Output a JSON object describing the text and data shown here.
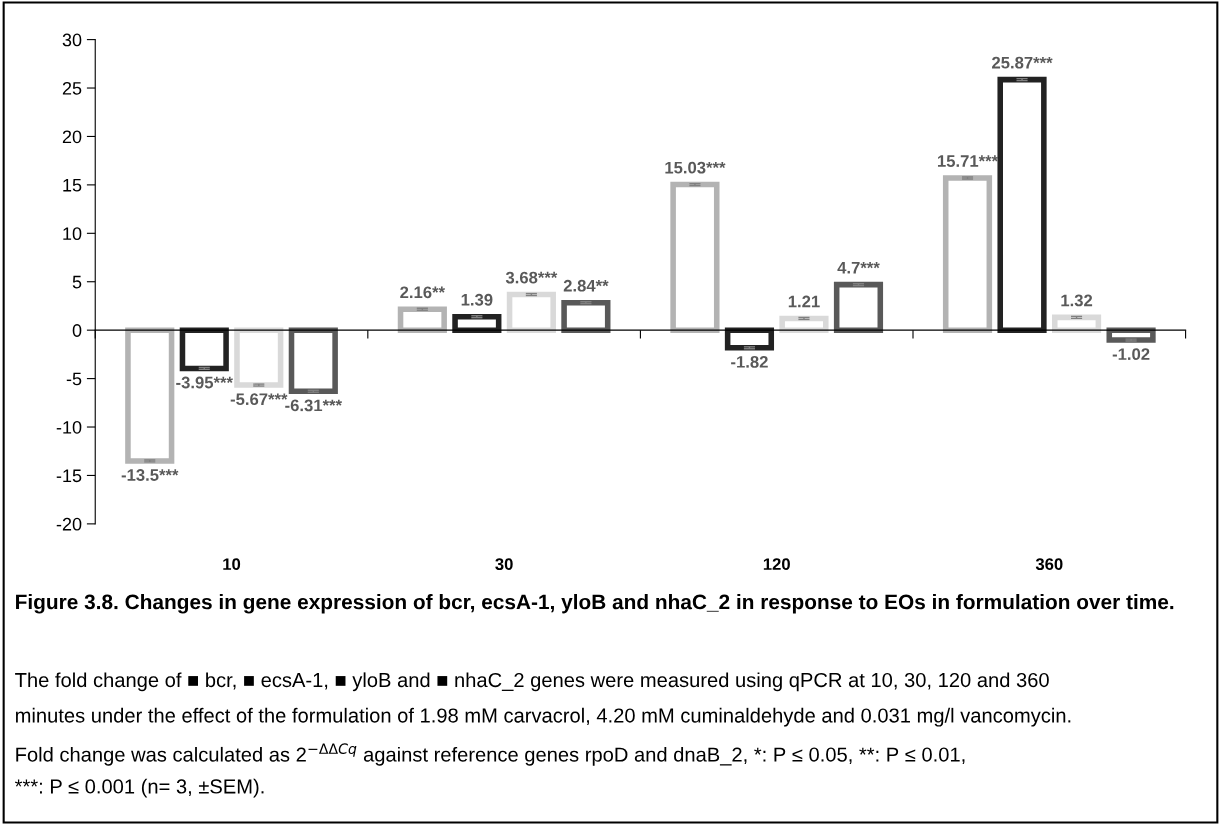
{
  "chart_data": {
    "type": "bar",
    "title": "Figure 3.8. Changes in gene expression of bcr, ecsA-1, yloB and nhaC_2 in response to EOs in formulation over time.",
    "categories": [
      "10",
      "30",
      "120",
      "360"
    ],
    "series": [
      {
        "color": "#b3b3b3",
        "values": [
          -13.5,
          2.16,
          15.03,
          15.71
        ],
        "errors": [
          0.1,
          0.1,
          0.1,
          0.1
        ],
        "value_labels": [
          "-13.5***",
          "2.16**",
          "15.03***",
          "15.71***"
        ]
      },
      {
        "color": "#222222",
        "values": [
          -3.95,
          1.39,
          -1.82,
          25.87
        ],
        "errors": [
          0.1,
          0.1,
          0.1,
          0.1
        ],
        "value_labels": [
          "-3.95***",
          "1.39",
          "-1.82",
          "25.87***"
        ]
      },
      {
        "color": "#d9d9d9",
        "values": [
          -5.67,
          3.68,
          1.21,
          1.32
        ],
        "errors": [
          0.1,
          0.1,
          0.1,
          0.1
        ],
        "value_labels": [
          "-5.67***",
          "3.68***",
          "1.21",
          "1.32"
        ]
      },
      {
        "color": "#595959",
        "values": [
          -6.31,
          2.84,
          4.7,
          -1.02
        ],
        "errors": [
          0.1,
          0.1,
          0.1,
          0.1
        ],
        "value_labels": [
          "-6.31***",
          "2.84**",
          "4.7***",
          "-1.02"
        ]
      }
    ],
    "ylim": [
      -20,
      30
    ],
    "yticks": [
      -20,
      -15,
      -10,
      -5,
      0,
      5,
      10,
      15,
      20,
      25,
      30
    ],
    "legend": false,
    "annotations": [
      "The fold change of ■ bcr, ■ ecsA-1, ■ yloB and ■ nhaC_2 genes were measured using qPCR at 10, 30, 120 and 360",
      "minutes under the effect of the formulation of 1.98 mM carvacrol, 4.20 mM cuminaldehyde and 0.031 mg/l vancomycin.",
      "Fold change was calculated as 2$^{−ΔΔCq}$ against reference genes rpoD and dnaB_2, *: P ≤ 0.05, **: P ≤ 0.01,",
      "***: P ≤ 0.001 (n= 3, ±SEM)."
    ]
  }
}
